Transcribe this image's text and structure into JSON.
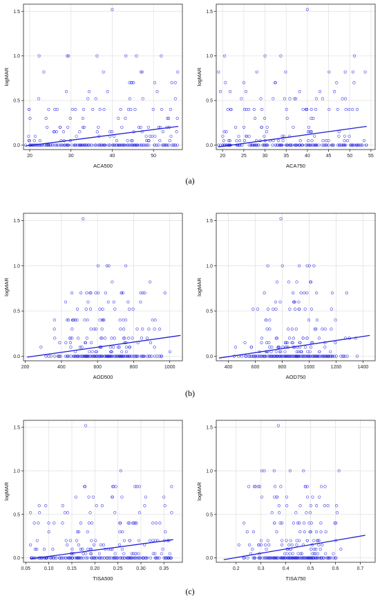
{
  "figure": {
    "captions": [
      "(a)",
      "(b)",
      "(c)"
    ]
  },
  "colors": {
    "points": "#3a3ae6",
    "fit_line": "#1a1ad6",
    "grid": "#e3e3e3"
  },
  "chart_data": [
    {
      "type": "scatter",
      "panel": "(a)",
      "xlabel": "ACA500",
      "ylabel": "logMAR",
      "xlim": [
        18.5,
        57
      ],
      "ylim": [
        -0.05,
        1.58
      ],
      "xticks": [
        20,
        30,
        40,
        50
      ],
      "yticks": [
        0.0,
        0.5,
        1.0,
        1.5
      ],
      "grid": true,
      "regression": {
        "x": [
          19,
          56
        ],
        "y": [
          -0.01,
          0.21
        ]
      },
      "seed": 11,
      "n_zero": 150,
      "n_other": 110,
      "xmode": "uniform",
      "outlier": {
        "x": 40,
        "y": 1.52
      }
    },
    {
      "type": "scatter",
      "panel": "(a)",
      "xlabel": "ACA750",
      "ylabel": "logMAR",
      "xlim": [
        18.5,
        56
      ],
      "ylim": [
        -0.05,
        1.58
      ],
      "xticks": [
        20,
        25,
        30,
        35,
        40,
        45,
        50,
        55
      ],
      "yticks": [
        0.0,
        0.5,
        1.0,
        1.5
      ],
      "grid": true,
      "regression": {
        "x": [
          19,
          54
        ],
        "y": [
          -0.02,
          0.21
        ]
      },
      "seed": 23,
      "n_zero": 150,
      "n_other": 110,
      "xmode": "uniform",
      "outlier": {
        "x": 40,
        "y": 1.52
      }
    },
    {
      "type": "scatter",
      "panel": "(b)",
      "xlabel": "AOD500",
      "ylabel": "logMAR",
      "xlim": [
        190,
        1070
      ],
      "ylim": [
        -0.05,
        1.58
      ],
      "xticks": [
        200,
        400,
        600,
        800,
        1000
      ],
      "yticks": [
        0.0,
        0.5,
        1.0,
        1.5
      ],
      "grid": true,
      "regression": {
        "x": [
          210,
          1060
        ],
        "y": [
          -0.01,
          0.23
        ]
      },
      "seed": 37,
      "n_zero": 160,
      "n_other": 120,
      "xmode": "center",
      "outlier": {
        "x": 520,
        "y": 1.52
      }
    },
    {
      "type": "scatter",
      "panel": "(b)",
      "xlabel": "AOD750",
      "ylabel": "logMAR",
      "xlim": [
        310,
        1490
      ],
      "ylim": [
        -0.05,
        1.58
      ],
      "xticks": [
        400,
        600,
        800,
        1000,
        1200,
        1400
      ],
      "yticks": [
        0.0,
        0.5,
        1.0,
        1.5
      ],
      "grid": true,
      "regression": {
        "x": [
          330,
          1450
        ],
        "y": [
          -0.02,
          0.23
        ]
      },
      "seed": 53,
      "n_zero": 160,
      "n_other": 120,
      "xmode": "center",
      "outlier": {
        "x": 790,
        "y": 1.52
      }
    },
    {
      "type": "scatter",
      "panel": "(c)",
      "xlabel": "TISA500",
      "ylabel": "logMAR",
      "xlim": [
        0.045,
        0.39
      ],
      "ylim": [
        -0.05,
        1.58
      ],
      "xticks": [
        0.05,
        0.1,
        0.15,
        0.2,
        0.25,
        0.3,
        0.35
      ],
      "yticks": [
        0.0,
        0.5,
        1.0,
        1.5
      ],
      "grid": true,
      "regression": {
        "x": [
          0.06,
          0.37
        ],
        "y": [
          -0.01,
          0.21
        ]
      },
      "seed": 71,
      "n_zero": 140,
      "n_other": 120,
      "xmode": "uniform",
      "outlier": {
        "x": 0.18,
        "y": 1.52
      }
    },
    {
      "type": "scatter",
      "panel": "(c)",
      "xlabel": "TISA750",
      "ylabel": "logMAR",
      "xlim": [
        0.12,
        0.76
      ],
      "ylim": [
        -0.05,
        1.58
      ],
      "xticks": [
        0.2,
        0.3,
        0.4,
        0.5,
        0.6,
        0.7
      ],
      "yticks": [
        0.0,
        0.5,
        1.0,
        1.5
      ],
      "grid": true,
      "regression": {
        "x": [
          0.15,
          0.72
        ],
        "y": [
          -0.02,
          0.26
        ]
      },
      "seed": 89,
      "n_zero": 140,
      "n_other": 120,
      "xmode": "center",
      "outlier": {
        "x": 0.37,
        "y": 1.52
      }
    }
  ]
}
